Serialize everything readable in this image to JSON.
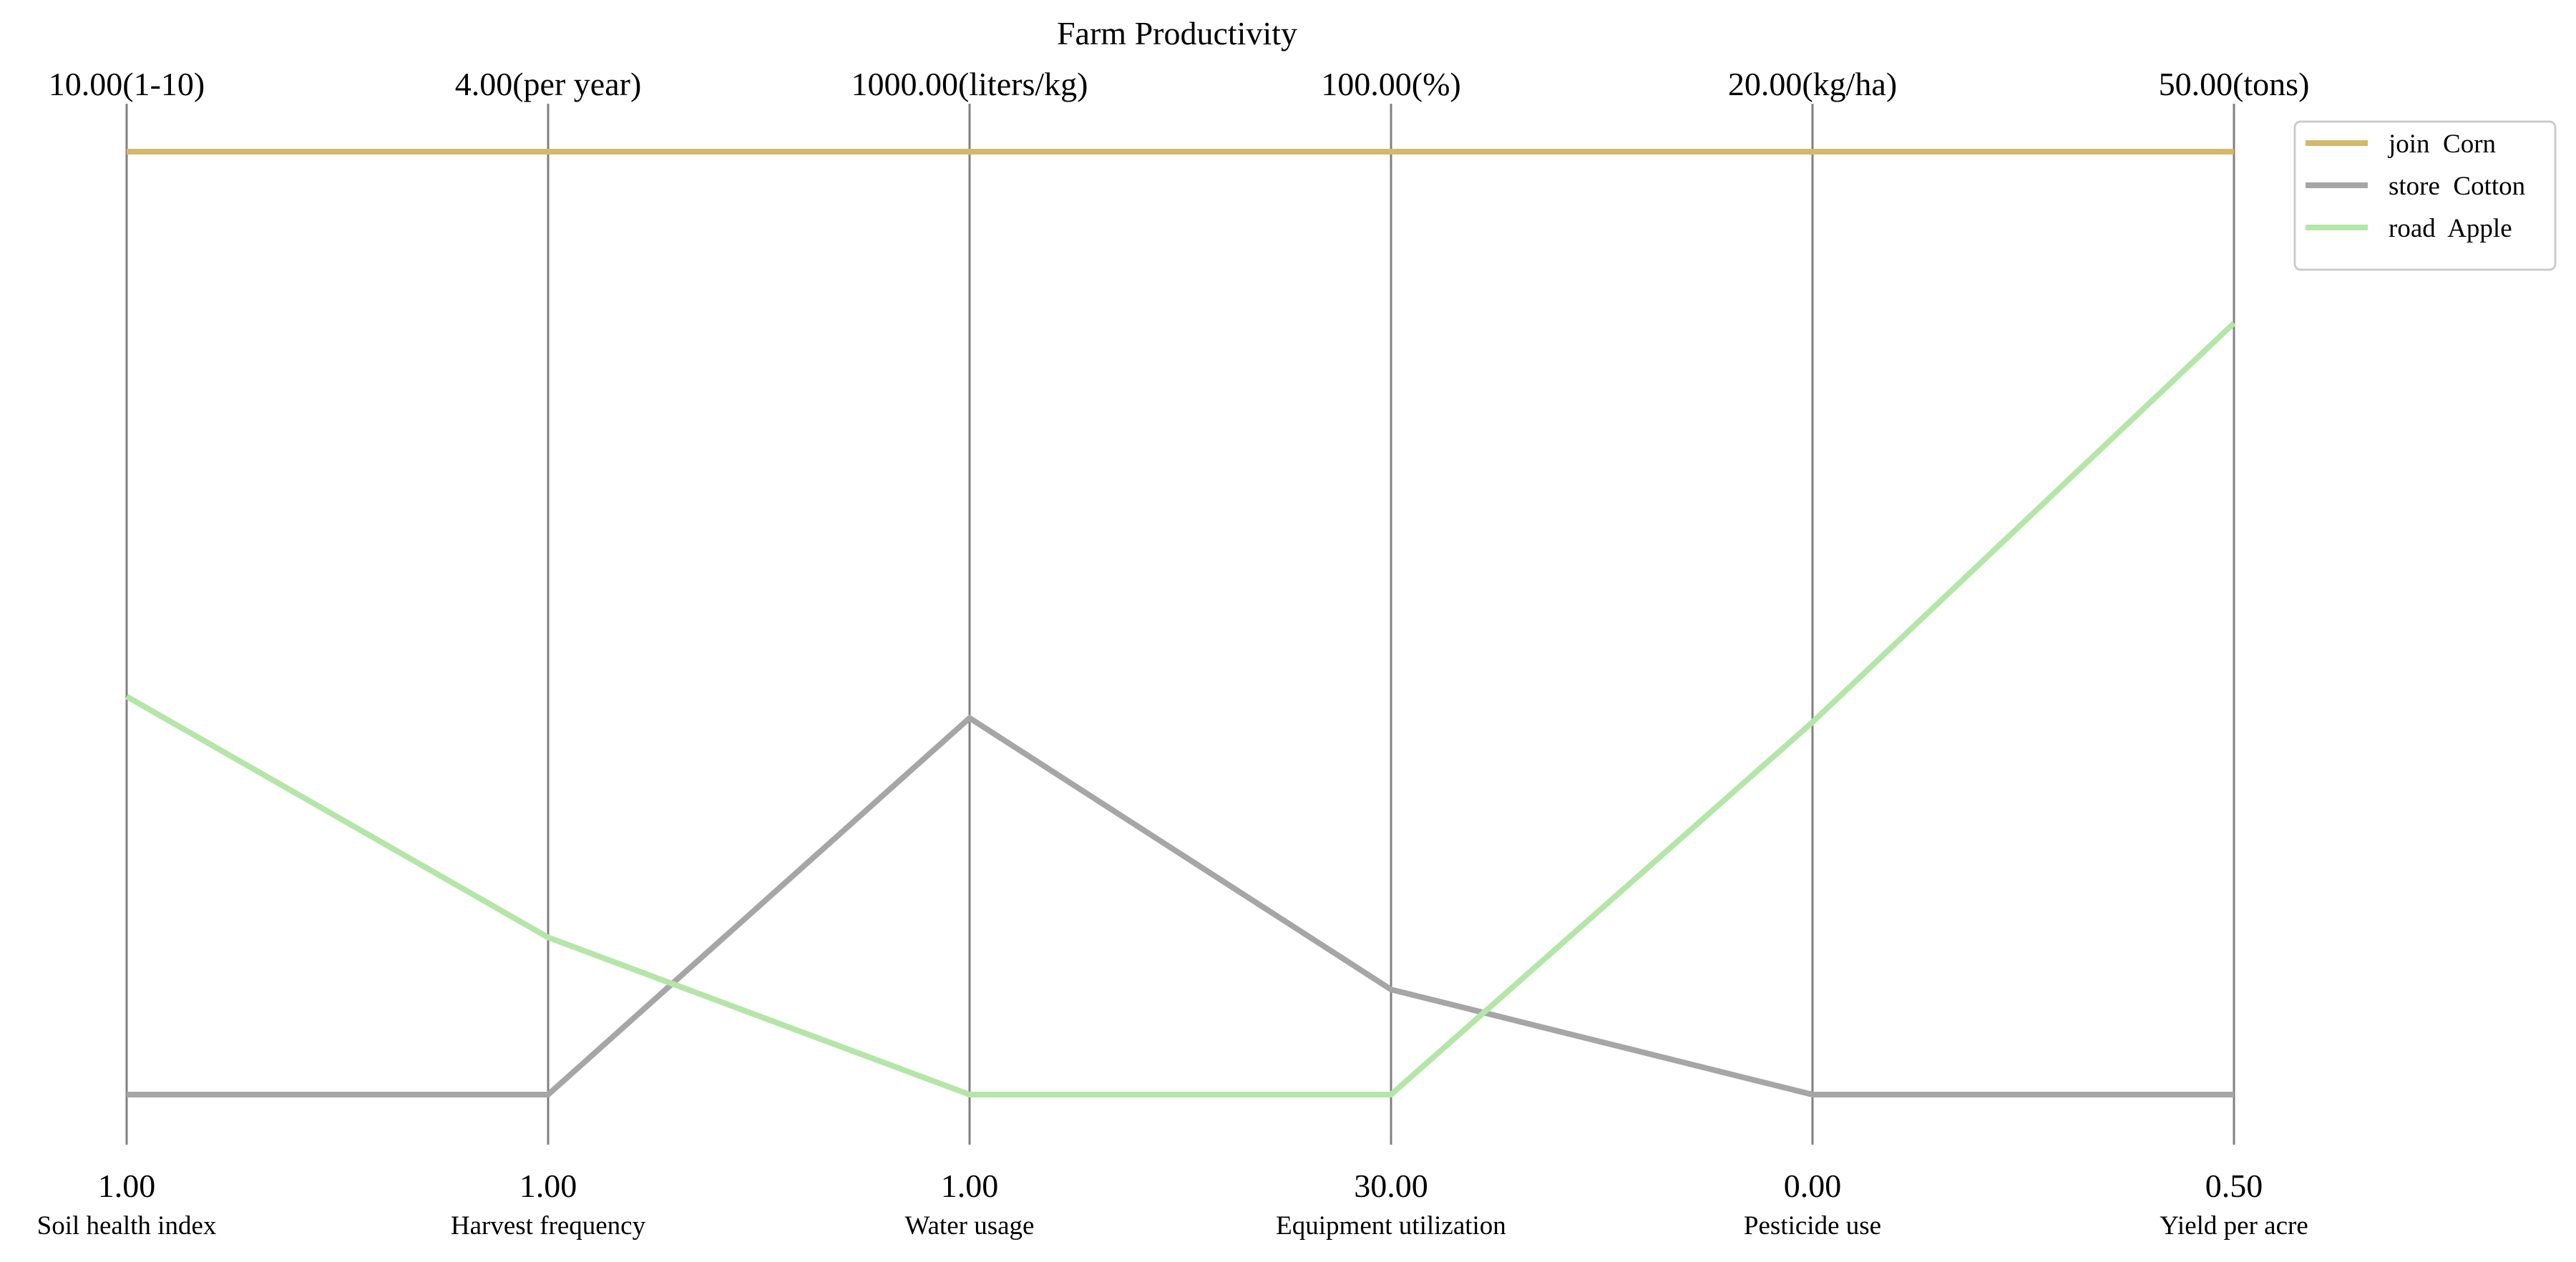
{
  "colors": {
    "background": "#ffffff",
    "axis": "#808080",
    "legend_border": "#cccccc"
  },
  "chart_data": {
    "type": "parallel-coordinates",
    "title": "Farm Productivity",
    "axes": [
      {
        "name": "Soil health index",
        "min": 1,
        "max": 10,
        "min_label": "1.00",
        "max_label": "10.00(1-10)"
      },
      {
        "name": "Harvest frequency",
        "min": 1,
        "max": 4,
        "min_label": "1.00",
        "max_label": "4.00(per year)"
      },
      {
        "name": "Water usage",
        "min": 1,
        "max": 1000,
        "min_label": "1.00",
        "max_label": "1000.00(liters/kg)"
      },
      {
        "name": "Equipment utilization",
        "min": 30,
        "max": 100,
        "min_label": "30.00",
        "max_label": "100.00(%)"
      },
      {
        "name": "Pesticide use",
        "min": 0,
        "max": 20,
        "min_label": "0.00",
        "max_label": "20.00(kg/ha)"
      },
      {
        "name": "Yield per acre",
        "min": 0.5,
        "max": 50,
        "min_label": "0.50",
        "max_label": "50.00(tons)"
      }
    ],
    "series": [
      {
        "name": "join  Corn",
        "color": "#d4b96a",
        "values": [
          10,
          4,
          1000,
          100,
          20,
          50
        ]
      },
      {
        "name": "store  Cotton",
        "color": "#a6a6a6",
        "values": [
          1,
          1,
          400,
          37.8,
          0,
          0.5
        ]
      },
      {
        "name": "road  Apple",
        "color": "#b4e6a8",
        "values": [
          4.8,
          1.5,
          1,
          30,
          7.9,
          41
        ]
      }
    ],
    "legend_position": "top-right"
  }
}
